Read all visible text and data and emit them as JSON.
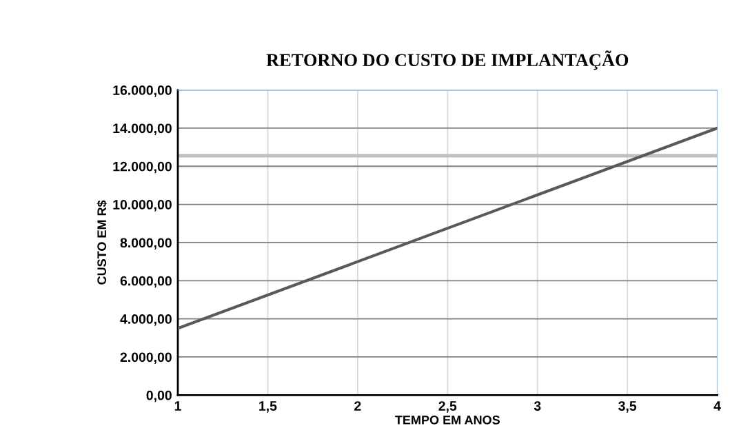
{
  "chart_data": {
    "type": "line",
    "title": "RETORNO DO CUSTO DE IMPLANTAÇÃO",
    "xlabel": "TEMPO EM ANOS",
    "ylabel": "CUSTO EM R$",
    "x": [
      1,
      2,
      3,
      4
    ],
    "series": [
      {
        "color": "#595959",
        "values": [
          3500,
          7000,
          10500,
          14000
        ]
      }
    ],
    "ref_lines": [
      {
        "axis": "y",
        "value": 12550,
        "color": "#bfbfbf"
      }
    ],
    "xlim": [
      1,
      4
    ],
    "xticks": [
      1,
      {
        "value": 1.5,
        "label": "1,5"
      },
      2,
      {
        "value": 2.5,
        "label": "2,5"
      },
      3,
      {
        "value": 3.5,
        "label": "3,5"
      },
      4
    ],
    "ylim": [
      0,
      16000
    ],
    "yticks": [
      {
        "value": 0,
        "label": "0,00"
      },
      {
        "value": 2000,
        "label": "2.000,00"
      },
      {
        "value": 4000,
        "label": "4.000,00"
      },
      {
        "value": 6000,
        "label": "6.000,00"
      },
      {
        "value": 8000,
        "label": "8.000,00"
      },
      {
        "value": 10000,
        "label": "10.000,00"
      },
      {
        "value": 12000,
        "label": "12.000,00"
      },
      {
        "value": 14000,
        "label": "14.000,00"
      },
      {
        "value": 16000,
        "label": "16.000,00"
      }
    ],
    "grid": true,
    "legend": false,
    "marker": "none",
    "line_style": "solid"
  }
}
